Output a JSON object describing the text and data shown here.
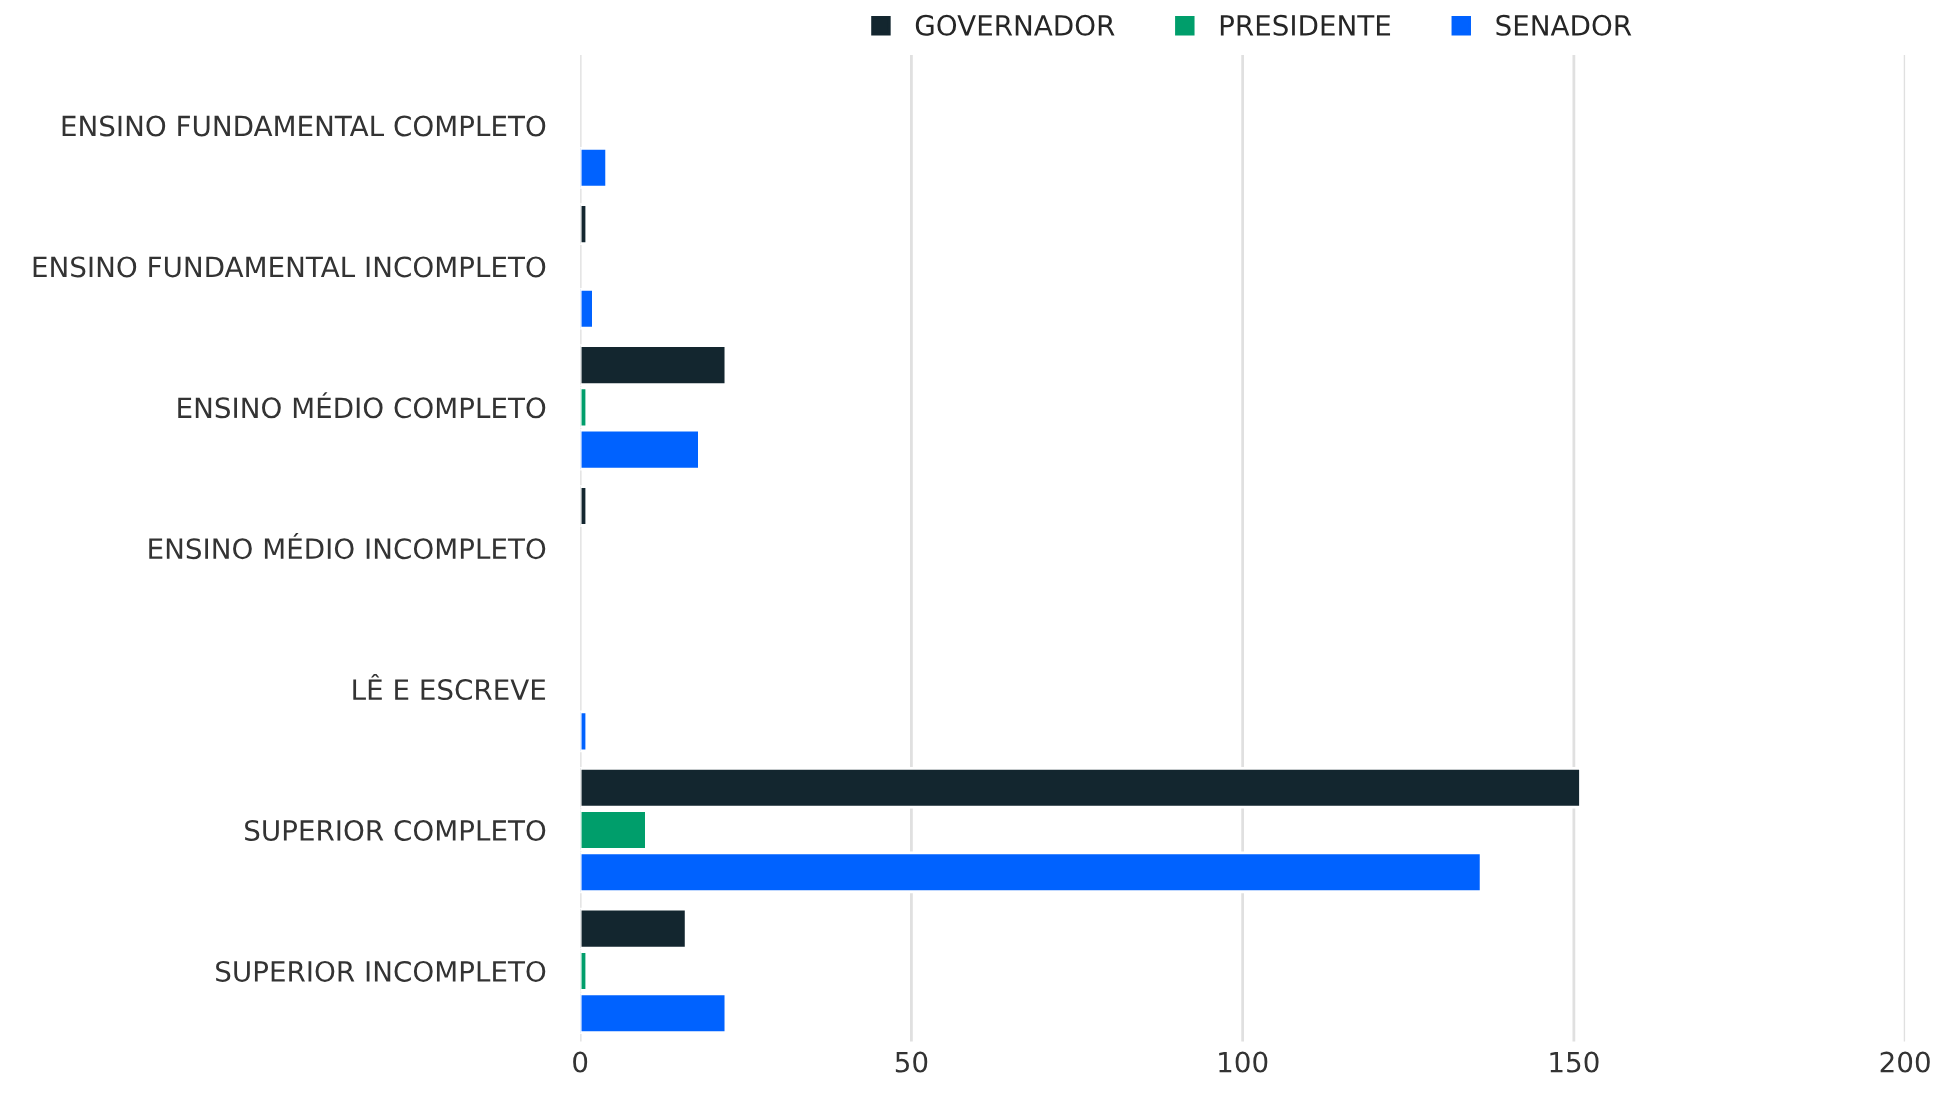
{
  "chart_data": {
    "type": "bar",
    "orientation": "horizontal",
    "categories": [
      "ENSINO FUNDAMENTAL COMPLETO",
      "ENSINO FUNDAMENTAL INCOMPLETO",
      "ENSINO MÉDIO COMPLETO",
      "ENSINO MÉDIO INCOMPLETO",
      "LÊ E ESCREVE",
      "SUPERIOR COMPLETO",
      "SUPERIOR INCOMPLETO"
    ],
    "series": [
      {
        "name": "GOVERNADOR",
        "color": "#13262f",
        "values": [
          null,
          1,
          22,
          1,
          null,
          151,
          16
        ]
      },
      {
        "name": "PRESIDENTE",
        "color": "#009e6b",
        "values": [
          null,
          null,
          1,
          null,
          null,
          10,
          1
        ]
      },
      {
        "name": "SENADOR",
        "color": "#0062ff",
        "values": [
          4,
          2,
          18,
          null,
          1,
          136,
          22
        ]
      }
    ],
    "xlim": [
      0,
      200
    ],
    "xticks": [
      0,
      50,
      100,
      150,
      200
    ],
    "grid": "x",
    "legend": "top"
  }
}
